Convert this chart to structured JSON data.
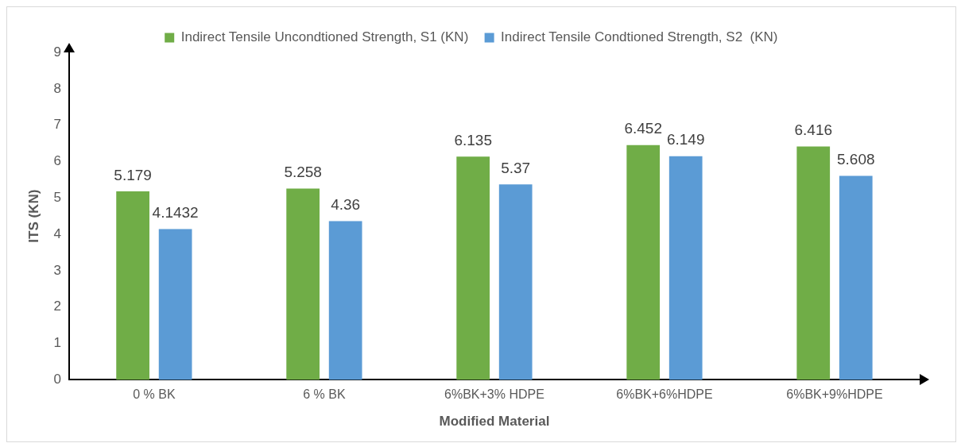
{
  "chart_data": {
    "type": "bar",
    "xlabel": "Modified Material",
    "ylabel": "ITS (KN)",
    "categories": [
      "0 % BK",
      "6 % BK",
      "6%BK+3% HDPE",
      "6%BK+6%HDPE",
      "6%BK+9%HDPE"
    ],
    "series": [
      {
        "name": "Indirect Tensile Uncondtioned Strength, S1 (KN)",
        "color": "#70ad47",
        "values": [
          5.179,
          5.258,
          6.135,
          6.452,
          6.416
        ]
      },
      {
        "name": "Indirect Tensile Condtioned Strength, S2  (KN)",
        "color": "#5b9bd5",
        "values": [
          4.1432,
          4.36,
          5.37,
          6.149,
          5.608
        ]
      }
    ],
    "ylim": [
      0,
      9
    ],
    "yticks": [
      0,
      1,
      2,
      3,
      4,
      5,
      6,
      7,
      8,
      9
    ],
    "grid": false,
    "legend": "top",
    "data_labels": true
  }
}
